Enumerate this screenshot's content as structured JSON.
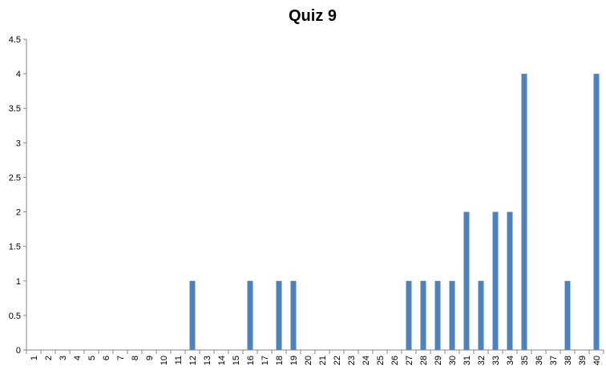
{
  "chart_data": {
    "type": "bar",
    "title": "Quiz 9",
    "xlabel": "",
    "ylabel": "",
    "ylim": [
      0,
      4.5
    ],
    "yticks": [
      "0",
      "0.5",
      "1",
      "1.5",
      "2",
      "2.5",
      "3",
      "3.5",
      "4",
      "4.5"
    ],
    "grid": false,
    "legend": "none",
    "bar_color": "#4F81BD",
    "categories": [
      "1",
      "2",
      "3",
      "4",
      "5",
      "6",
      "7",
      "8",
      "9",
      "10",
      "11",
      "12",
      "13",
      "14",
      "15",
      "16",
      "17",
      "18",
      "19",
      "20",
      "21",
      "22",
      "23",
      "24",
      "25",
      "26",
      "27",
      "28",
      "29",
      "30",
      "31",
      "32",
      "33",
      "34",
      "35",
      "36",
      "37",
      "38",
      "39",
      "40"
    ],
    "values": [
      0,
      0,
      0,
      0,
      0,
      0,
      0,
      0,
      0,
      0,
      0,
      1,
      0,
      0,
      0,
      1,
      0,
      1,
      1,
      0,
      0,
      0,
      0,
      0,
      0,
      0,
      1,
      1,
      1,
      1,
      2,
      1,
      2,
      2,
      4,
      0,
      0,
      1,
      0,
      4
    ]
  }
}
